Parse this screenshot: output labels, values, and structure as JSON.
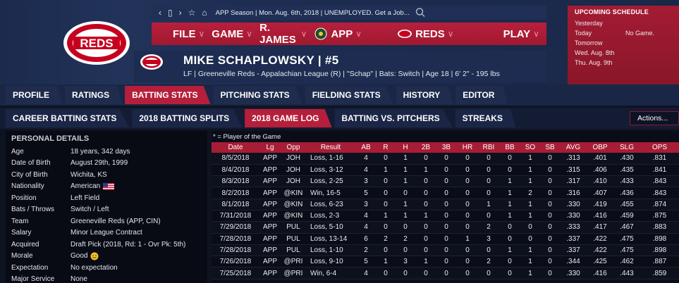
{
  "topbar": {
    "crumb": "APP Season  |  Mon. Aug. 6th, 2018  |  UNEMPLOYED. Get a Job..."
  },
  "menu": [
    {
      "label": "FILE"
    },
    {
      "label": "GAME"
    },
    {
      "label": "R. JAMES"
    },
    {
      "label": "APP"
    },
    {
      "label": "REDS"
    },
    {
      "label": "PLAY"
    }
  ],
  "player": {
    "name": "MIKE SCHAPLOWSKY  |  #5",
    "info": "LF | Greeneville Reds - Appalachian League (R)  |  \"Schap\"  |  Bats: Switch  |  Age 18  |  6' 2\" - 195 lbs"
  },
  "schedule": {
    "title": "UPCOMING SCHEDULE",
    "rows": [
      {
        "day": "Yesterday",
        "game": ""
      },
      {
        "day": "Today",
        "game": "No Game."
      },
      {
        "day": "Tomorrow",
        "game": ""
      },
      {
        "day": "Wed. Aug. 8th",
        "game": ""
      },
      {
        "day": "Thu. Aug. 9th",
        "game": ""
      }
    ]
  },
  "tabs": [
    "PROFILE",
    "RATINGS",
    "BATTING STATS",
    "PITCHING STATS",
    "FIELDING STATS",
    "HISTORY",
    "EDITOR"
  ],
  "subtabs": [
    "CAREER BATTING STATS",
    "2018 BATTING SPLITS",
    "2018 GAME LOG",
    "BATTING VS. PITCHERS",
    "STREAKS"
  ],
  "actions_label": "Actions...",
  "details": {
    "title": "PERSONAL DETAILS",
    "rows": [
      {
        "k": "Age",
        "v": "18 years, 342 days"
      },
      {
        "k": "Date of Birth",
        "v": "August 29th, 1999"
      },
      {
        "k": "City of Birth",
        "v": "Wichita, KS"
      },
      {
        "k": "Nationality",
        "v": "American"
      },
      {
        "k": "Position",
        "v": "Left Field"
      },
      {
        "k": "Bats / Throws",
        "v": "Switch / Left"
      },
      {
        "k": "Team",
        "v": "Greeneville Reds (APP, CIN)"
      },
      {
        "k": "Salary",
        "v": "Minor League Contract"
      },
      {
        "k": "Acquired",
        "v": "Draft Pick (2018, Rd: 1 - Ovr Pk: 5th)"
      },
      {
        "k": "Morale",
        "v": "Good"
      },
      {
        "k": "Expectation",
        "v": "No expectation"
      },
      {
        "k": "Major Service",
        "v": "None"
      }
    ]
  },
  "gamelog": {
    "note": "* = Player of the Game",
    "headers": [
      "Date",
      "Lg",
      "Opp",
      "Result",
      "AB",
      "R",
      "H",
      "2B",
      "3B",
      "HR",
      "RBI",
      "BB",
      "SO",
      "SB",
      "AVG",
      "OBP",
      "SLG",
      "OPS"
    ],
    "rows": [
      [
        "8/5/2018",
        "APP",
        "JOH",
        "Loss, 1-16",
        "4",
        "0",
        "1",
        "0",
        "0",
        "0",
        "0",
        "0",
        "1",
        "0",
        ".313",
        ".401",
        ".430",
        ".831"
      ],
      [
        "8/4/2018",
        "APP",
        "JOH",
        "Loss, 3-12",
        "4",
        "1",
        "1",
        "1",
        "0",
        "0",
        "0",
        "0",
        "1",
        "0",
        ".315",
        ".406",
        ".435",
        ".841"
      ],
      [
        "8/3/2018",
        "APP",
        "JOH",
        "Loss, 2-25",
        "3",
        "0",
        "1",
        "0",
        "0",
        "0",
        "0",
        "1",
        "1",
        "0",
        ".317",
        ".410",
        ".433",
        ".843"
      ],
      [
        "8/2/2018",
        "APP",
        "@KIN",
        "Win, 16-5",
        "5",
        "0",
        "0",
        "0",
        "0",
        "0",
        "0",
        "1",
        "2",
        "0",
        ".316",
        ".407",
        ".436",
        ".843"
      ],
      [
        "8/1/2018",
        "APP",
        "@KIN",
        "Loss, 6-23",
        "3",
        "0",
        "1",
        "0",
        "0",
        "0",
        "1",
        "1",
        "1",
        "0",
        ".330",
        ".419",
        ".455",
        ".874"
      ],
      [
        "7/31/2018",
        "APP",
        "@KIN",
        "Loss, 2-3",
        "4",
        "1",
        "1",
        "1",
        "0",
        "0",
        "0",
        "1",
        "1",
        "0",
        ".330",
        ".416",
        ".459",
        ".875"
      ],
      [
        "7/29/2018",
        "APP",
        "PUL",
        "Loss, 5-10",
        "4",
        "0",
        "0",
        "0",
        "0",
        "0",
        "2",
        "0",
        "0",
        "0",
        ".333",
        ".417",
        ".467",
        ".883"
      ],
      [
        "7/28/2018",
        "APP",
        "PUL",
        "Loss, 13-14",
        "6",
        "2",
        "2",
        "0",
        "0",
        "1",
        "3",
        "0",
        "0",
        "0",
        ".337",
        ".422",
        ".475",
        ".898"
      ],
      [
        "7/28/2018",
        "APP",
        "PUL",
        "Loss, 1-10",
        "2",
        "0",
        "0",
        "0",
        "0",
        "0",
        "0",
        "1",
        "1",
        "0",
        ".337",
        ".422",
        ".475",
        ".898"
      ],
      [
        "7/26/2018",
        "APP",
        "@PRI",
        "Loss, 9-10",
        "5",
        "1",
        "3",
        "1",
        "0",
        "0",
        "2",
        "0",
        "1",
        "0",
        ".344",
        ".425",
        ".462",
        ".887"
      ],
      [
        "7/25/2018",
        "APP",
        "@PRI",
        "Win, 6-4",
        "4",
        "0",
        "0",
        "0",
        "0",
        "0",
        "0",
        "0",
        "1",
        "0",
        ".330",
        ".416",
        ".443",
        ".859"
      ]
    ]
  },
  "colors": {
    "accent": "#b51f3b",
    "navy": "#1d2c50"
  },
  "icons": [
    "reds-logo",
    "back-icon",
    "forward-icon",
    "phone-icon",
    "star-icon",
    "home-icon",
    "search-icon",
    "greeneville-logo",
    "us-flag-icon",
    "smile-icon"
  ]
}
